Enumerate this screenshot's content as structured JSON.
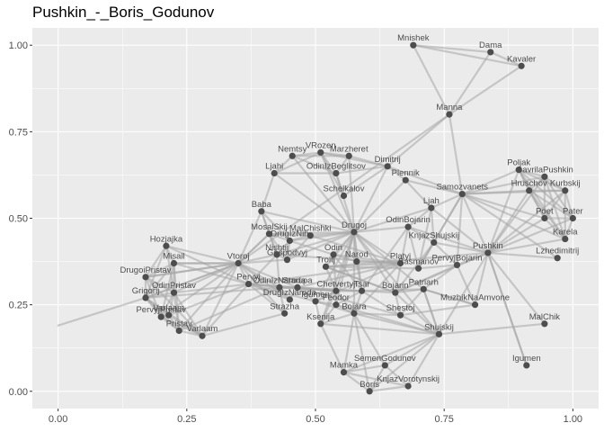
{
  "chart_data": {
    "type": "network",
    "title": "Pushkin_-_Boris_Godunov",
    "xlim": [
      -0.05,
      1.05
    ],
    "ylim": [
      -0.05,
      1.05
    ],
    "x_ticks": [
      0.0,
      0.25,
      0.5,
      0.75,
      1.0
    ],
    "x_tick_labels": [
      "0.00",
      "0.25",
      "0.50",
      "0.75",
      "1.00"
    ],
    "y_ticks": [
      0.0,
      0.25,
      0.5,
      0.75,
      1.0
    ],
    "y_tick_labels": [
      "0.00",
      "0.25",
      "0.50",
      "0.75",
      "1.00"
    ],
    "grid": true,
    "colors": {
      "panel": "#ebebeb",
      "grid": "#ffffff",
      "edge": "#a6a6a6",
      "node": "#4d4d4d"
    },
    "nodes": [
      {
        "name": "Mnishek",
        "x": 0.69,
        "y": 1.0
      },
      {
        "name": "Dama",
        "x": 0.84,
        "y": 0.98
      },
      {
        "name": "Kavaler",
        "x": 0.9,
        "y": 0.94
      },
      {
        "name": "Manna",
        "x": 0.76,
        "y": 0.8
      },
      {
        "name": "VRozen",
        "x": 0.51,
        "y": 0.69
      },
      {
        "name": "Nemtsy",
        "x": 0.455,
        "y": 0.68
      },
      {
        "name": "Marzheret",
        "x": 0.565,
        "y": 0.68
      },
      {
        "name": "Dimitrij",
        "x": 0.64,
        "y": 0.65
      },
      {
        "name": "Ljahi",
        "x": 0.42,
        "y": 0.63
      },
      {
        "name": "OdinIzBeglitsov",
        "x": 0.54,
        "y": 0.63
      },
      {
        "name": "Plennik",
        "x": 0.675,
        "y": 0.61
      },
      {
        "name": "Poljak",
        "x": 0.895,
        "y": 0.64
      },
      {
        "name": "GavrilaPushkin",
        "x": 0.945,
        "y": 0.62
      },
      {
        "name": "Samozvanets",
        "x": 0.785,
        "y": 0.57
      },
      {
        "name": "Hruschov",
        "x": 0.915,
        "y": 0.58
      },
      {
        "name": "Kurbskij",
        "x": 0.985,
        "y": 0.58
      },
      {
        "name": "Schelkalov",
        "x": 0.555,
        "y": 0.565
      },
      {
        "name": "Ljah",
        "x": 0.725,
        "y": 0.53
      },
      {
        "name": "Pater",
        "x": 1.0,
        "y": 0.5
      },
      {
        "name": "Baba",
        "x": 0.395,
        "y": 0.52
      },
      {
        "name": "OdinBojarin",
        "x": 0.68,
        "y": 0.475
      },
      {
        "name": "Poet",
        "x": 0.945,
        "y": 0.5
      },
      {
        "name": "Drugoj",
        "x": 0.575,
        "y": 0.46
      },
      {
        "name": "MosalSkij",
        "x": 0.41,
        "y": 0.455
      },
      {
        "name": "MalChishki",
        "x": 0.49,
        "y": 0.45
      },
      {
        "name": "DrugIzNih",
        "x": 0.45,
        "y": 0.435
      },
      {
        "name": "KnjazShujskij",
        "x": 0.73,
        "y": 0.43
      },
      {
        "name": "Karela",
        "x": 0.985,
        "y": 0.44
      },
      {
        "name": "Hozjajka",
        "x": 0.21,
        "y": 0.42
      },
      {
        "name": "Nishtij",
        "x": 0.425,
        "y": 0.395
      },
      {
        "name": "Odin",
        "x": 0.535,
        "y": 0.395
      },
      {
        "name": "Pushkin",
        "x": 0.835,
        "y": 0.4
      },
      {
        "name": "Lzhedimitrij",
        "x": 0.97,
        "y": 0.385
      },
      {
        "name": "Gospodvyj",
        "x": 0.445,
        "y": 0.38
      },
      {
        "name": "Narod",
        "x": 0.58,
        "y": 0.375
      },
      {
        "name": "Misail",
        "x": 0.225,
        "y": 0.37
      },
      {
        "name": "Vtoroj",
        "x": 0.35,
        "y": 0.37
      },
      {
        "name": "PervyjBojarin",
        "x": 0.775,
        "y": 0.365
      },
      {
        "name": "Platyj",
        "x": 0.665,
        "y": 0.37
      },
      {
        "name": "Troitj",
        "x": 0.52,
        "y": 0.36
      },
      {
        "name": "Basmanov",
        "x": 0.7,
        "y": 0.355
      },
      {
        "name": "DrugoiPristav",
        "x": 0.17,
        "y": 0.33
      },
      {
        "name": "Pervyj",
        "x": 0.37,
        "y": 0.31
      },
      {
        "name": "OdinIzNarodа",
        "x": 0.43,
        "y": 0.3
      },
      {
        "name": "Starupa",
        "x": 0.465,
        "y": 0.3
      },
      {
        "name": "OdinPristav",
        "x": 0.225,
        "y": 0.285
      },
      {
        "name": "Grigorij",
        "x": 0.17,
        "y": 0.27
      },
      {
        "name": "Chetvertyj",
        "x": 0.54,
        "y": 0.29
      },
      {
        "name": "Tsar",
        "x": 0.59,
        "y": 0.29
      },
      {
        "name": "Bojarin",
        "x": 0.655,
        "y": 0.285
      },
      {
        "name": "Patriarh",
        "x": 0.71,
        "y": 0.295
      },
      {
        "name": "MuzhikNaAmvone",
        "x": 0.81,
        "y": 0.25
      },
      {
        "name": "DrugIzNarodа",
        "x": 0.45,
        "y": 0.265
      },
      {
        "name": "Igumen",
        "x": 0.5,
        "y": 0.26
      },
      {
        "name": "Feodor",
        "x": 0.54,
        "y": 0.25
      },
      {
        "name": "Strazha",
        "x": 0.44,
        "y": 0.225
      },
      {
        "name": "Bojara",
        "x": 0.575,
        "y": 0.225
      },
      {
        "name": "Shestoj",
        "x": 0.665,
        "y": 0.22
      },
      {
        "name": "Ksenija",
        "x": 0.51,
        "y": 0.195
      },
      {
        "name": "PervyjPristav",
        "x": 0.2,
        "y": 0.215
      },
      {
        "name": "Varlaam",
        "x": 0.215,
        "y": 0.22
      },
      {
        "name": "Pristav",
        "x": 0.235,
        "y": 0.175
      },
      {
        "name": "Varlaam",
        "x": 0.28,
        "y": 0.16
      },
      {
        "name": "MalChik",
        "x": 0.945,
        "y": 0.195
      },
      {
        "name": "Shujskij",
        "x": 0.74,
        "y": 0.165
      },
      {
        "name": "SemenGodunov",
        "x": 0.635,
        "y": 0.075
      },
      {
        "name": "Mamka",
        "x": 0.555,
        "y": 0.055
      },
      {
        "name": "KnjazVorotynskij",
        "x": 0.68,
        "y": 0.015
      },
      {
        "name": "Igumen",
        "x": 0.91,
        "y": 0.075
      },
      {
        "name": "Boris",
        "x": 0.605,
        "y": 0.0
      }
    ],
    "edges": [
      [
        0,
        1
      ],
      [
        0,
        2
      ],
      [
        1,
        2
      ],
      [
        0,
        3
      ],
      [
        1,
        3
      ],
      [
        2,
        3
      ],
      [
        3,
        13
      ],
      [
        3,
        7
      ],
      [
        3,
        36
      ],
      [
        4,
        5
      ],
      [
        4,
        6
      ],
      [
        4,
        7
      ],
      [
        4,
        8
      ],
      [
        4,
        9
      ],
      [
        5,
        6
      ],
      [
        5,
        8
      ],
      [
        5,
        9
      ],
      [
        6,
        7
      ],
      [
        6,
        9
      ],
      [
        7,
        9
      ],
      [
        8,
        9
      ],
      [
        7,
        10
      ],
      [
        4,
        22
      ],
      [
        5,
        22
      ],
      [
        6,
        22
      ],
      [
        7,
        22
      ],
      [
        8,
        22
      ],
      [
        9,
        22
      ],
      [
        8,
        19
      ],
      [
        4,
        16
      ],
      [
        7,
        16
      ],
      [
        9,
        16
      ],
      [
        10,
        22
      ],
      [
        10,
        17
      ],
      [
        10,
        13
      ],
      [
        7,
        13
      ],
      [
        13,
        17
      ],
      [
        13,
        31
      ],
      [
        11,
        12
      ],
      [
        11,
        14
      ],
      [
        11,
        15
      ],
      [
        11,
        18
      ],
      [
        11,
        21
      ],
      [
        11,
        27
      ],
      [
        11,
        31
      ],
      [
        11,
        13
      ],
      [
        12,
        14
      ],
      [
        12,
        15
      ],
      [
        12,
        18
      ],
      [
        12,
        21
      ],
      [
        12,
        27
      ],
      [
        12,
        31
      ],
      [
        12,
        13
      ],
      [
        14,
        15
      ],
      [
        14,
        18
      ],
      [
        14,
        21
      ],
      [
        14,
        27
      ],
      [
        14,
        31
      ],
      [
        14,
        13
      ],
      [
        15,
        18
      ],
      [
        15,
        21
      ],
      [
        15,
        27
      ],
      [
        15,
        31
      ],
      [
        15,
        13
      ],
      [
        18,
        21
      ],
      [
        18,
        27
      ],
      [
        18,
        31
      ],
      [
        21,
        27
      ],
      [
        21,
        31
      ],
      [
        27,
        31
      ],
      [
        13,
        21
      ],
      [
        13,
        27
      ],
      [
        31,
        32
      ],
      [
        13,
        32
      ],
      [
        31,
        20
      ],
      [
        31,
        26
      ],
      [
        31,
        37
      ],
      [
        31,
        17
      ],
      [
        31,
        51
      ],
      [
        31,
        64
      ],
      [
        31,
        68
      ],
      [
        31,
        39
      ],
      [
        31,
        49
      ],
      [
        17,
        20
      ],
      [
        17,
        26
      ],
      [
        17,
        22
      ],
      [
        17,
        40
      ],
      [
        13,
        40
      ],
      [
        13,
        26
      ],
      [
        13,
        37
      ],
      [
        20,
        22
      ],
      [
        20,
        26
      ],
      [
        20,
        40
      ],
      [
        20,
        49
      ],
      [
        20,
        48
      ],
      [
        26,
        40
      ],
      [
        26,
        37
      ],
      [
        26,
        49
      ],
      [
        37,
        40
      ],
      [
        37,
        49
      ],
      [
        37,
        50
      ],
      [
        22,
        24
      ],
      [
        22,
        23
      ],
      [
        22,
        25
      ],
      [
        22,
        29
      ],
      [
        22,
        30
      ],
      [
        22,
        33
      ],
      [
        22,
        34
      ],
      [
        22,
        38
      ],
      [
        22,
        39
      ],
      [
        22,
        47
      ],
      [
        22,
        48
      ],
      [
        22,
        49
      ],
      [
        22,
        50
      ],
      [
        22,
        53
      ],
      [
        22,
        54
      ],
      [
        22,
        56
      ],
      [
        22,
        58
      ],
      [
        22,
        64
      ],
      [
        19,
        23
      ],
      [
        19,
        25
      ],
      [
        19,
        29
      ],
      [
        19,
        36
      ],
      [
        19,
        22
      ],
      [
        23,
        24
      ],
      [
        23,
        25
      ],
      [
        23,
        29
      ],
      [
        23,
        33
      ],
      [
        23,
        36
      ],
      [
        24,
        25
      ],
      [
        24,
        33
      ],
      [
        24,
        38
      ],
      [
        25,
        29
      ],
      [
        25,
        33
      ],
      [
        25,
        30
      ],
      [
        29,
        33
      ],
      [
        29,
        42
      ],
      [
        29,
        43
      ],
      [
        29,
        38
      ],
      [
        30,
        34
      ],
      [
        30,
        38
      ],
      [
        30,
        47
      ],
      [
        30,
        48
      ],
      [
        34,
        38
      ],
      [
        34,
        48
      ],
      [
        36,
        42
      ],
      [
        36,
        43
      ],
      [
        36,
        44
      ],
      [
        36,
        35
      ],
      [
        36,
        41
      ],
      [
        36,
        46
      ],
      [
        36,
        28
      ],
      [
        36,
        52
      ],
      [
        36,
        55
      ],
      [
        36,
        23
      ],
      [
        36,
        29
      ],
      [
        36,
        33
      ],
      [
        42,
        43
      ],
      [
        42,
        44
      ],
      [
        42,
        52
      ],
      [
        42,
        53
      ],
      [
        42,
        55
      ],
      [
        42,
        38
      ],
      [
        42,
        47
      ],
      [
        43,
        44
      ],
      [
        43,
        52
      ],
      [
        43,
        55
      ],
      [
        43,
        47
      ],
      [
        43,
        48
      ],
      [
        44,
        52
      ],
      [
        44,
        53
      ],
      [
        44,
        47
      ],
      [
        44,
        48
      ],
      [
        44,
        57
      ],
      [
        44,
        38
      ],
      [
        47,
        48
      ],
      [
        47,
        53
      ],
      [
        47,
        54
      ],
      [
        47,
        56
      ],
      [
        47,
        58
      ],
      [
        47,
        39
      ],
      [
        48,
        49
      ],
      [
        48,
        54
      ],
      [
        48,
        56
      ],
      [
        48,
        57
      ],
      [
        48,
        50
      ],
      [
        49,
        50
      ],
      [
        49,
        57
      ],
      [
        49,
        39
      ],
      [
        50,
        57
      ],
      [
        50,
        51
      ],
      [
        50,
        64
      ],
      [
        39,
        40
      ],
      [
        39,
        49
      ],
      [
        38,
        39
      ],
      [
        38,
        53
      ],
      [
        38,
        56
      ],
      [
        53,
        54
      ],
      [
        53,
        56
      ],
      [
        53,
        58
      ],
      [
        54,
        56
      ],
      [
        54,
        58
      ],
      [
        56,
        58
      ],
      [
        56,
        57
      ],
      [
        56,
        64
      ],
      [
        58,
        64
      ],
      [
        57,
        64
      ],
      [
        54,
        64
      ],
      [
        64,
        65
      ],
      [
        64,
        66
      ],
      [
        64,
        67
      ],
      [
        64,
        69
      ],
      [
        64,
        63
      ],
      [
        64,
        49
      ],
      [
        64,
        50
      ],
      [
        65,
        66
      ],
      [
        65,
        67
      ],
      [
        65,
        69
      ],
      [
        66,
        67
      ],
      [
        66,
        69
      ],
      [
        67,
        69
      ],
      [
        66,
        58
      ],
      [
        69,
        56
      ],
      [
        65,
        56
      ],
      [
        66,
        56
      ],
      [
        31,
        68
      ],
      [
        31,
        63
      ],
      [
        37,
        51
      ],
      [
        50,
        51
      ],
      [
        51,
        57
      ],
      [
        28,
        35
      ],
      [
        28,
        41
      ],
      [
        28,
        46
      ],
      [
        28,
        45
      ],
      [
        35,
        41
      ],
      [
        35,
        45
      ],
      [
        35,
        46
      ],
      [
        35,
        59
      ],
      [
        35,
        61
      ],
      [
        41,
        45
      ],
      [
        41,
        46
      ],
      [
        41,
        59
      ],
      [
        41,
        62
      ],
      [
        45,
        46
      ],
      [
        45,
        59
      ],
      [
        45,
        60
      ],
      [
        45,
        61
      ],
      [
        45,
        62
      ],
      [
        46,
        59
      ],
      [
        46,
        60
      ],
      [
        46,
        61
      ],
      [
        46,
        62
      ],
      [
        59,
        60
      ],
      [
        59,
        61
      ],
      [
        59,
        62
      ],
      [
        60,
        61
      ],
      [
        60,
        62
      ],
      [
        61,
        62
      ],
      [
        35,
        36
      ],
      [
        41,
        36
      ],
      [
        45,
        36
      ],
      [
        46,
        36
      ],
      [
        59,
        36
      ],
      [
        61,
        36
      ],
      [
        62,
        36
      ],
      [
        28,
        42
      ],
      [
        35,
        42
      ],
      [
        45,
        42
      ],
      [
        62,
        42
      ],
      [
        46,
        43
      ],
      [
        61,
        43
      ],
      [
        62,
        55
      ],
      [
        60,
        42
      ],
      [
        -1,
        46
      ]
    ],
    "label_offsets": "above-node"
  }
}
